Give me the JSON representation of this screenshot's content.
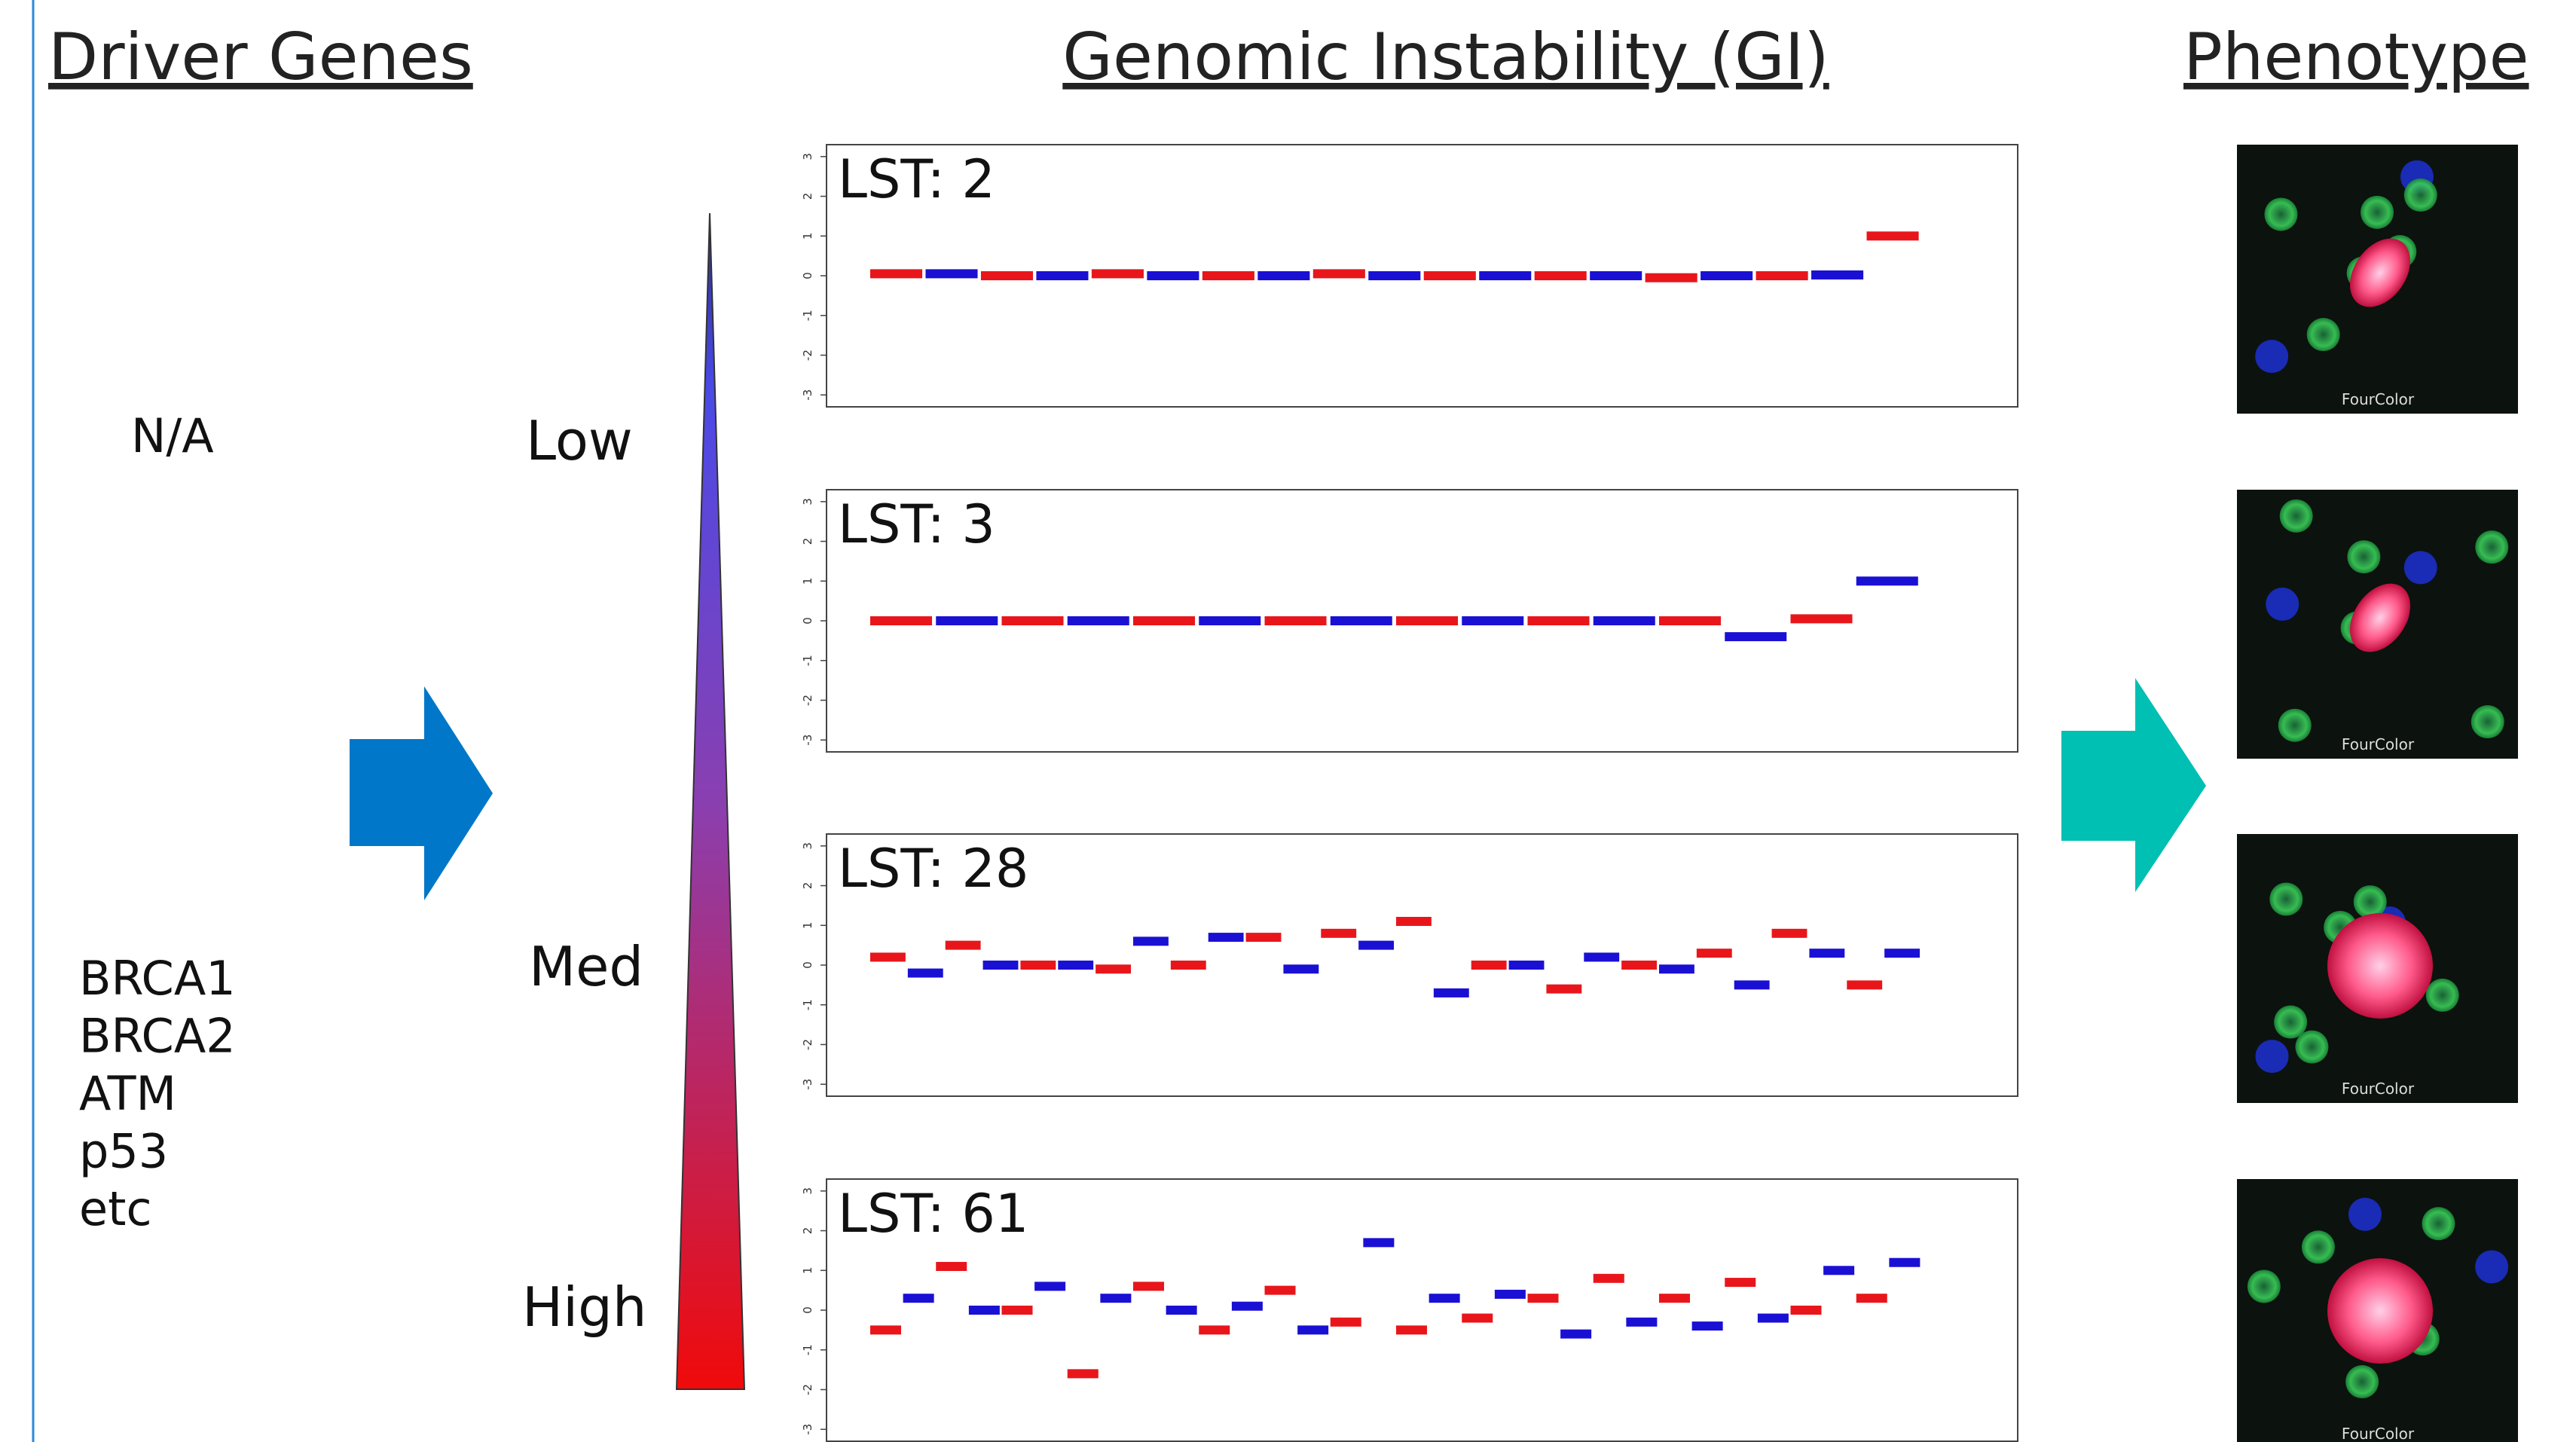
{
  "headers": {
    "driver_genes": "Driver Genes",
    "gi": "Genomic Instability (GI)",
    "phenotype": "Phenotype"
  },
  "driver_genes": {
    "none": "N/A",
    "genes": [
      "BRCA1",
      "BRCA2",
      "ATM",
      "p53",
      "etc"
    ]
  },
  "gi_levels": [
    "Low",
    "Med",
    "High"
  ],
  "segment_colors": [
    "#e8161b",
    "#1a10d4"
  ],
  "plots": [
    {
      "label": "LST: 2",
      "ylim": [
        -3.3,
        3.3
      ],
      "yticks": [
        -3,
        -2,
        -1,
        0,
        1,
        2,
        3
      ],
      "values": [
        0.05,
        0.05,
        0,
        0,
        0.05,
        0,
        0,
        0,
        0.05,
        0,
        0,
        0,
        0,
        0,
        -0.05,
        0,
        0,
        0.02,
        1.0
      ]
    },
    {
      "label": "LST: 3",
      "ylim": [
        -3.3,
        3.3
      ],
      "yticks": [
        -3,
        -2,
        -1,
        0,
        1,
        2,
        3
      ],
      "values": [
        0,
        0,
        0,
        0,
        0,
        0,
        0,
        0,
        0,
        0,
        0,
        0,
        0,
        -0.4,
        0.05,
        1.0
      ]
    },
    {
      "label": "LST: 28",
      "ylim": [
        -3.3,
        3.3
      ],
      "yticks": [
        -3,
        -2,
        -1,
        0,
        1,
        2,
        3
      ],
      "values": [
        0.2,
        -0.2,
        0.5,
        0,
        0,
        0,
        -0.1,
        0.6,
        0,
        0.7,
        0.7,
        -0.1,
        0.8,
        0.5,
        1.1,
        -0.7,
        0,
        0,
        -0.6,
        0.2,
        0,
        -0.1,
        0.3,
        -0.5,
        0.8,
        0.3,
        -0.5,
        0.3
      ]
    },
    {
      "label": "LST: 61",
      "ylim": [
        -3.3,
        3.3
      ],
      "yticks": [
        -3,
        -2,
        -1,
        0,
        1,
        2,
        3
      ],
      "values": [
        -0.5,
        0.3,
        1.1,
        0,
        0,
        0.6,
        -1.6,
        0.3,
        0.6,
        0,
        -0.5,
        0.1,
        0.5,
        -0.5,
        -0.3,
        1.7,
        -0.5,
        0.3,
        -0.2,
        0.4,
        0.3,
        -0.6,
        0.8,
        -0.3,
        0.3,
        -0.4,
        0.7,
        -0.2,
        0,
        1.0,
        0.3,
        1.2
      ]
    }
  ],
  "phenotype": {
    "captions": [
      "FourColor",
      "FourColor",
      "FourColor",
      "FourColor"
    ]
  }
}
